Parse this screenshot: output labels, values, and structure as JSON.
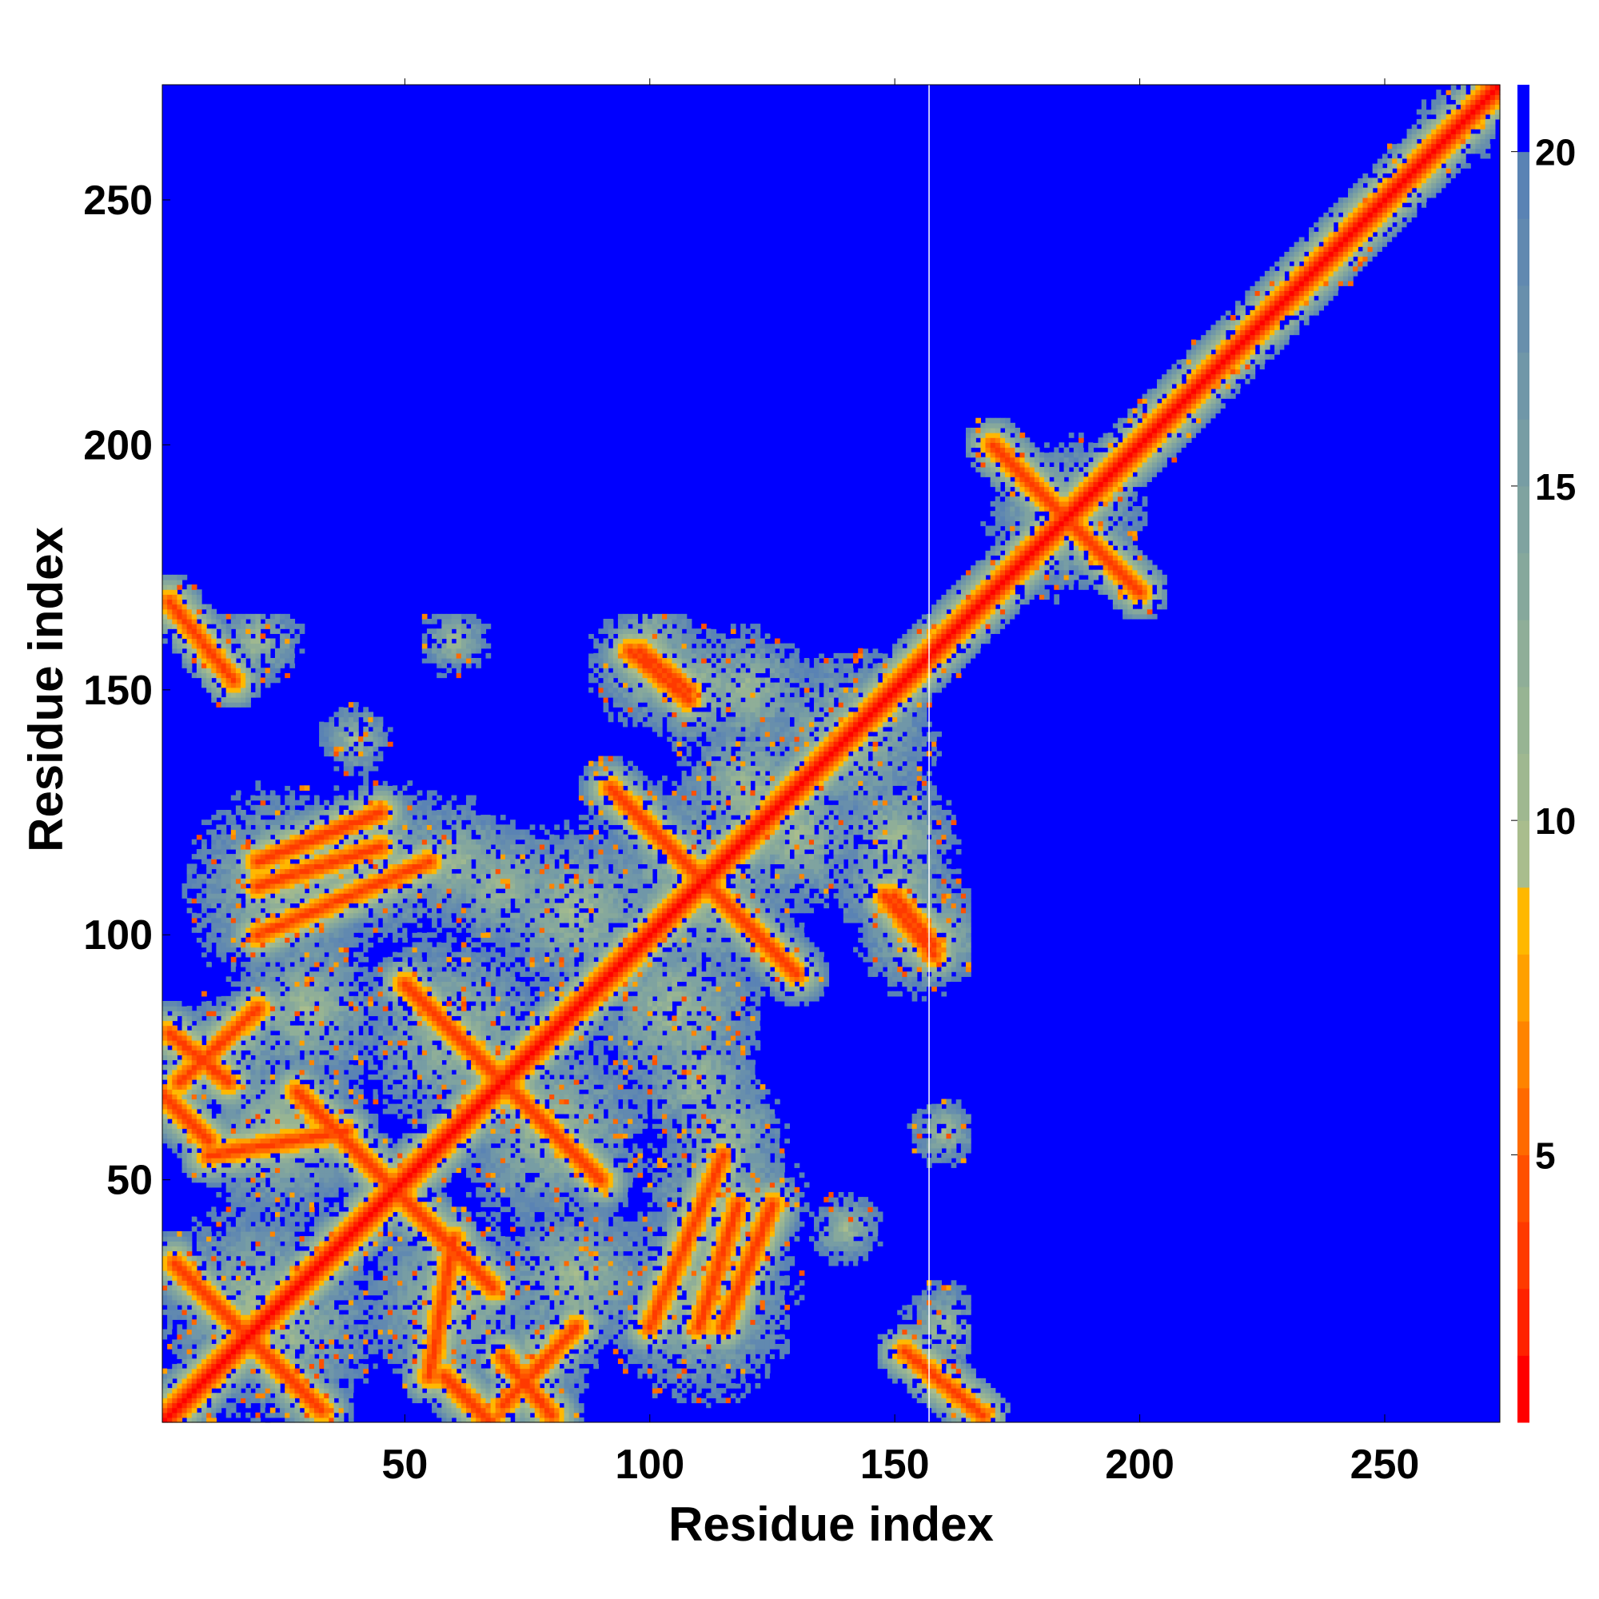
{
  "chart_data": {
    "type": "heatmap",
    "title": "",
    "xlabel": "Residue index",
    "ylabel": "Residue index",
    "n_residues": 273,
    "xlim": [
      1,
      273
    ],
    "ylim": [
      1,
      273
    ],
    "x_ticks": [
      50,
      100,
      150,
      200,
      250
    ],
    "y_ticks": [
      50,
      100,
      150,
      200,
      250
    ],
    "colorbar": {
      "ticks": [
        5,
        10,
        15,
        20
      ],
      "range": [
        1,
        21
      ],
      "colors": [
        {
          "upto": 2,
          "color": "#ff0000"
        },
        {
          "upto": 3,
          "color": "#ff2200"
        },
        {
          "upto": 4,
          "color": "#ff3a00"
        },
        {
          "upto": 5,
          "color": "#ff5000"
        },
        {
          "upto": 6,
          "color": "#ff6a00"
        },
        {
          "upto": 7,
          "color": "#ff8400"
        },
        {
          "upto": 8,
          "color": "#ffa000"
        },
        {
          "upto": 9,
          "color": "#ffb800"
        },
        {
          "upto": 10,
          "color": "#a9bd8d"
        },
        {
          "upto": 11,
          "color": "#9fb890"
        },
        {
          "upto": 12,
          "color": "#97b493"
        },
        {
          "upto": 13,
          "color": "#8fae98"
        },
        {
          "upto": 14,
          "color": "#86a89c"
        },
        {
          "upto": 15,
          "color": "#7fa3a0"
        },
        {
          "upto": 16,
          "color": "#779da4"
        },
        {
          "upto": 17,
          "color": "#7097a8"
        },
        {
          "upto": 18,
          "color": "#688fac"
        },
        {
          "upto": 19,
          "color": "#6189b0"
        },
        {
          "upto": 20,
          "color": "#5a83b4"
        },
        {
          "upto": 21,
          "color": "#0000ff"
        }
      ]
    },
    "background_color": "#0000ff",
    "diagonal_band_width": 9,
    "separator_at": 157,
    "domain_split": 157,
    "contact_features": [
      {
        "kind": "antidiag",
        "x0": 3,
        "y0": 33,
        "x1": 33,
        "y1": 3,
        "w": 3
      },
      {
        "kind": "antidiag",
        "x0": 28,
        "y0": 68,
        "x1": 68,
        "y1": 28,
        "w": 2.5
      },
      {
        "kind": "antidiag",
        "x0": 52,
        "y0": 88,
        "x1": 90,
        "y1": 50,
        "w": 2.5
      },
      {
        "kind": "antidiag",
        "x0": 92,
        "y0": 130,
        "x1": 130,
        "y1": 92,
        "w": 2.5
      },
      {
        "kind": "antidiag",
        "x0": 58,
        "y0": 10,
        "x1": 98,
        "y1": -30,
        "w": 2
      },
      {
        "kind": "antidiag",
        "x0": 2,
        "y0": 80,
        "x1": 14,
        "y1": 70,
        "w": 2
      },
      {
        "kind": "antidiag",
        "x0": 2,
        "y0": 168,
        "x1": 15,
        "y1": 152,
        "w": 1.5
      },
      {
        "kind": "antidiag",
        "x0": 98,
        "y0": 158,
        "x1": 108,
        "y1": 150,
        "w": 1.5
      },
      {
        "kind": "antidiag",
        "x0": 170,
        "y0": 200,
        "x1": 200,
        "y1": 170,
        "w": 1.5
      },
      {
        "kind": "antidiag",
        "x0": 148,
        "y0": 108,
        "x1": 158,
        "y1": 96,
        "w": 1.5
      },
      {
        "kind": "diag",
        "x0": 10,
        "y0": 55,
        "x1": 38,
        "y1": 60,
        "w": 1.5
      },
      {
        "kind": "diag",
        "x0": 55,
        "y0": 10,
        "x1": 60,
        "y1": 38,
        "w": 1.5
      },
      {
        "kind": "diag",
        "x0": 20,
        "y0": 100,
        "x1": 55,
        "y1": 115,
        "w": 1.5
      },
      {
        "kind": "diag",
        "x0": 115,
        "y0": 20,
        "x1": 125,
        "y1": 45,
        "w": 1.5
      },
      {
        "kind": "diag",
        "x0": 20,
        "y0": 110,
        "x1": 45,
        "y1": 118,
        "w": 1.2
      },
      {
        "kind": "diag",
        "x0": 70,
        "y0": 4,
        "x1": 85,
        "y1": 20,
        "w": 1.2
      }
    ],
    "contact_blobs": [
      {
        "cx": 20,
        "cy": 25,
        "r": 22
      },
      {
        "cx": 25,
        "cy": 60,
        "r": 20
      },
      {
        "cx": 25,
        "cy": 110,
        "r": 22
      },
      {
        "cx": 15,
        "cy": 78,
        "r": 12
      },
      {
        "cx": 45,
        "cy": 115,
        "r": 18
      },
      {
        "cx": 70,
        "cy": 110,
        "r": 14
      },
      {
        "cx": 60,
        "cy": 25,
        "r": 20
      },
      {
        "cx": 60,
        "cy": 80,
        "r": 22
      },
      {
        "cx": 85,
        "cy": 30,
        "r": 18
      },
      {
        "cx": 85,
        "cy": 105,
        "r": 20
      },
      {
        "cx": 110,
        "cy": 28,
        "r": 18
      },
      {
        "cx": 115,
        "cy": 60,
        "r": 14
      },
      {
        "cx": 110,
        "cy": 110,
        "r": 24
      },
      {
        "cx": 140,
        "cy": 140,
        "r": 20
      },
      {
        "cx": 150,
        "cy": 110,
        "r": 14
      },
      {
        "cx": 100,
        "cy": 155,
        "r": 14
      },
      {
        "cx": 60,
        "cy": 160,
        "r": 8
      },
      {
        "cx": 20,
        "cy": 160,
        "r": 10
      },
      {
        "cx": 160,
        "cy": 20,
        "r": 6
      },
      {
        "cx": 160,
        "cy": 60,
        "r": 6
      },
      {
        "cx": 160,
        "cy": 100,
        "r": 10
      },
      {
        "cx": 185,
        "cy": 185,
        "r": 18
      },
      {
        "cx": 265,
        "cy": 265,
        "r": 9
      },
      {
        "cx": 130,
        "cy": 120,
        "r": 16
      },
      {
        "cx": 140,
        "cy": 40,
        "r": 8
      },
      {
        "cx": 120,
        "cy": 150,
        "r": 14
      }
    ]
  }
}
